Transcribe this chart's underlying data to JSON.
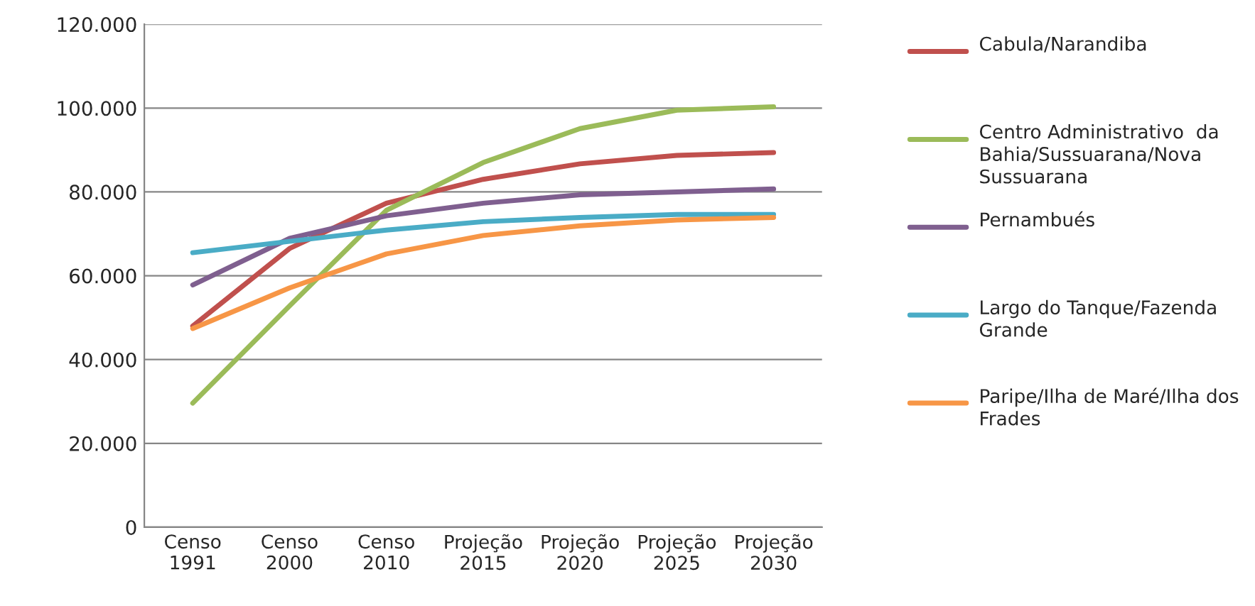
{
  "chart_data": {
    "type": "line",
    "categories": [
      "Censo 1991",
      "Censo 2000",
      "Censo 2010",
      "Projeção 2015",
      "Projeção 2020",
      "Projeção 2025",
      "Projeção 2030"
    ],
    "series": [
      {
        "name": "Cabula/Narandiba",
        "color": "#c0504d",
        "values": [
          48000,
          66500,
          77300,
          83000,
          86700,
          88700,
          89400
        ]
      },
      {
        "name": "Centro Administrativo  da Bahia/Sussuarana/Nova Sussuarana",
        "color": "#9bbb59",
        "values": [
          29600,
          52800,
          75600,
          87000,
          95100,
          99500,
          100300
        ]
      },
      {
        "name": "Pernambués",
        "color": "#7f5f8f",
        "values": [
          57800,
          68900,
          74300,
          77300,
          79300,
          80000,
          80700
        ]
      },
      {
        "name": "Largo do Tanque/Fazenda Grande",
        "color": "#4aacc6",
        "values": [
          65500,
          68200,
          70900,
          72900,
          73900,
          74600,
          74600
        ]
      },
      {
        "name": "Paripe/Ilha de Maré/Ilha dos Frades",
        "color": "#f79646",
        "values": [
          47400,
          57100,
          65200,
          69600,
          71900,
          73300,
          73900
        ]
      }
    ],
    "ylim": [
      0,
      120000
    ],
    "yticks": [
      0,
      {
        "value": 20000,
        "label": "20.000"
      },
      {
        "value": 40000,
        "label": "40.000"
      },
      {
        "value": 60000,
        "label": "60.000"
      },
      {
        "value": 80000,
        "label": "80.000"
      },
      {
        "value": 100000,
        "label": "100.000"
      },
      {
        "value": 120000,
        "label": "120.000"
      }
    ],
    "grid": "y",
    "legend": "right",
    "marker": "none",
    "line_style": "solid"
  }
}
